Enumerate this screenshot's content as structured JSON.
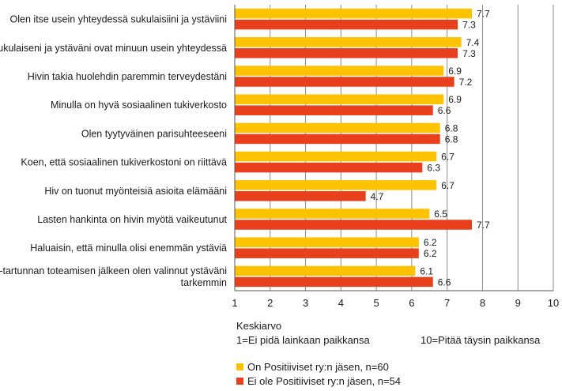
{
  "chart_data": {
    "type": "bar",
    "orientation": "horizontal",
    "categories": [
      [
        "Olen itse usein yhteydessä sukulaisiini ja ystäviini"
      ],
      [
        "Sukulaiseni ja ystäväni ovat minuun usein yhteydessä"
      ],
      [
        "Hivin takia huolehdin paremmin terveydestäni"
      ],
      [
        "Minulla on hyvä sosiaalinen tukiverkosto"
      ],
      [
        "Olen tyytyväinen parisuhteeseeni"
      ],
      [
        "Koen, että sosiaalinen tukiverkostoni on riittävä"
      ],
      [
        "Hiv on tuonut myönteisiä asioita elämääni"
      ],
      [
        "Lasten hankinta on hivin myötä vaikeutunut"
      ],
      [
        "Haluaisin, että minulla olisi enemmän ystäviä"
      ],
      [
        "Hiv-tartunnan toteamisen jälkeen olen valinnut ystäväni",
        "tarkemmin"
      ]
    ],
    "series": [
      {
        "name": "On Positiiviset ry:n jäsen, n=60",
        "color": "#FDC200",
        "values": [
          7.7,
          7.4,
          6.9,
          6.9,
          6.8,
          6.7,
          6.7,
          6.5,
          6.2,
          6.1
        ]
      },
      {
        "name": "Ei ole Positiiviset ry:n jäsen, n=54",
        "color": "#E8401C",
        "values": [
          7.3,
          7.3,
          7.2,
          6.6,
          6.8,
          6.3,
          4.7,
          7.7,
          6.2,
          6.6
        ]
      }
    ],
    "xlim": [
      1,
      10
    ],
    "xticks": [
      "1",
      "2",
      "3",
      "4",
      "5",
      "6",
      "7",
      "8",
      "9",
      "10"
    ],
    "grid": true,
    "legend_position": "bottom-left"
  },
  "footer": {
    "title": "Keskiarvo",
    "scale_min": "1=Ei pidä lainkaan paikkansa",
    "scale_max": "10=Pitää täysin paikkansa"
  }
}
